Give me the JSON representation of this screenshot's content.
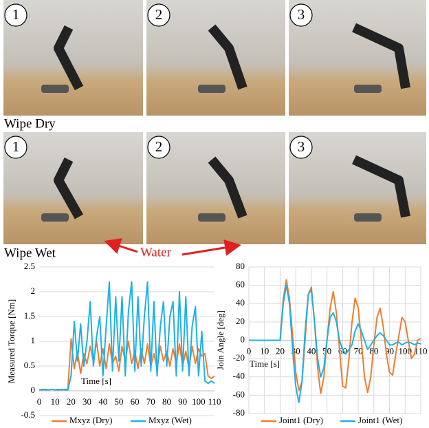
{
  "photos": {
    "rows": [
      {
        "label": "Wipe Dry",
        "steps": [
          "1",
          "2",
          "3"
        ]
      },
      {
        "label": "Wipe Wet",
        "steps": [
          "1",
          "2",
          "3"
        ]
      }
    ],
    "annotation": "Water"
  },
  "chart_data": [
    {
      "type": "line",
      "y_label": "Measured Torque [Nm]",
      "x_label": "Time [s]",
      "grid": "y",
      "x": [
        0,
        2,
        4,
        6,
        8,
        10,
        12,
        14,
        16,
        18,
        20,
        22,
        24,
        26,
        28,
        30,
        32,
        34,
        36,
        38,
        40,
        42,
        44,
        46,
        48,
        50,
        52,
        54,
        56,
        58,
        60,
        62,
        64,
        66,
        68,
        70,
        72,
        74,
        76,
        78,
        80,
        82,
        84,
        86,
        88,
        90,
        92,
        94,
        96,
        98,
        100,
        102,
        104,
        106,
        108,
        110
      ],
      "xlim": [
        0,
        110
      ],
      "xticks": [
        0,
        10,
        20,
        30,
        40,
        50,
        60,
        70,
        80,
        90,
        100,
        110
      ],
      "ylim": [
        -0.5,
        2.5
      ],
      "yticks": [
        -0.5,
        0,
        0.5,
        1,
        1.5,
        2,
        2.5
      ],
      "series": [
        {
          "name": "Mxyz (Dry)",
          "color": "#ed7d31",
          "values": [
            0.02,
            0.02,
            0.03,
            0.02,
            0.03,
            0.02,
            0.03,
            0.02,
            0.03,
            0.03,
            1.05,
            0.45,
            0.8,
            0.35,
            0.75,
            0.55,
            0.9,
            0.6,
            1.0,
            0.5,
            0.85,
            0.45,
            0.95,
            0.55,
            0.7,
            0.4,
            0.9,
            0.6,
            1.0,
            0.55,
            0.8,
            0.45,
            0.85,
            0.55,
            0.95,
            0.5,
            0.75,
            0.45,
            0.9,
            0.6,
            0.8,
            0.5,
            0.85,
            0.55,
            0.95,
            0.5,
            0.8,
            0.45,
            0.9,
            0.55,
            0.85,
            0.7,
            0.75,
            0.3,
            0.25,
            0.3
          ]
        },
        {
          "name": "Mxyz (Wet)",
          "color": "#1fb0e6",
          "values": [
            0.02,
            0.03,
            0.02,
            0.02,
            0.03,
            0.02,
            0.02,
            0.03,
            0.02,
            0.02,
            0.3,
            1.4,
            0.6,
            1.35,
            0.5,
            1.0,
            1.8,
            0.5,
            1.1,
            1.5,
            0.3,
            1.3,
            2.2,
            0.4,
            1.9,
            0.6,
            1.9,
            0.3,
            1.6,
            2.2,
            0.4,
            1.9,
            0.5,
            1.5,
            2.2,
            0.4,
            1.8,
            0.3,
            1.3,
            1.8,
            0.5,
            1.5,
            1.8,
            0.3,
            2.0,
            0.4,
            1.9,
            0.3,
            1.3,
            1.7,
            0.3,
            1.2,
            0.2,
            0.15,
            0.2,
            0.15
          ]
        }
      ]
    },
    {
      "type": "line",
      "y_label": "Join Angle [deg]",
      "x_label": "Time [s]",
      "grid": "both",
      "x": [
        0,
        2,
        4,
        6,
        8,
        10,
        12,
        14,
        16,
        18,
        20,
        22,
        24,
        26,
        28,
        30,
        32,
        34,
        36,
        38,
        40,
        42,
        44,
        46,
        48,
        50,
        52,
        54,
        56,
        58,
        60,
        62,
        64,
        66,
        68,
        70,
        72,
        74,
        76,
        78,
        80,
        82,
        84,
        86,
        88,
        90,
        92,
        94,
        96,
        98,
        100,
        102,
        104,
        106,
        108,
        110
      ],
      "xlim": [
        0,
        110
      ],
      "xticks": [
        0,
        10,
        20,
        30,
        40,
        50,
        60,
        70,
        80,
        90,
        100,
        110
      ],
      "ylim": [
        -80,
        80
      ],
      "yticks": [
        -80,
        -60,
        -40,
        -20,
        0,
        20,
        40,
        60,
        80
      ],
      "series": [
        {
          "name": "Joint1 (Dry)",
          "color": "#ed7d31",
          "values": [
            0,
            0,
            0,
            0,
            0,
            0,
            0,
            0,
            0,
            0,
            0,
            45,
            66,
            45,
            5,
            -35,
            -55,
            -45,
            0,
            50,
            58,
            20,
            -30,
            -58,
            -40,
            0,
            35,
            53,
            30,
            -10,
            -50,
            -52,
            -20,
            20,
            46,
            35,
            0,
            -40,
            -57,
            -40,
            -5,
            25,
            35,
            15,
            -15,
            -35,
            -38,
            -15,
            5,
            25,
            20,
            0,
            -20,
            -15,
            0,
            2
          ]
        },
        {
          "name": "Joint1 (Wet)",
          "color": "#1fb0e6",
          "values": [
            0,
            0,
            0,
            0,
            0,
            0,
            0,
            0,
            0,
            0,
            0,
            40,
            60,
            40,
            -10,
            -50,
            -68,
            -45,
            10,
            50,
            55,
            20,
            -20,
            -40,
            -30,
            0,
            25,
            30,
            20,
            0,
            -10,
            -15,
            -10,
            -5,
            10,
            18,
            10,
            0,
            -10,
            -5,
            0,
            5,
            8,
            5,
            0,
            -5,
            -5,
            -3,
            -2,
            -5,
            -3,
            -2,
            -3,
            -5,
            -3,
            -4
          ]
        }
      ]
    }
  ]
}
